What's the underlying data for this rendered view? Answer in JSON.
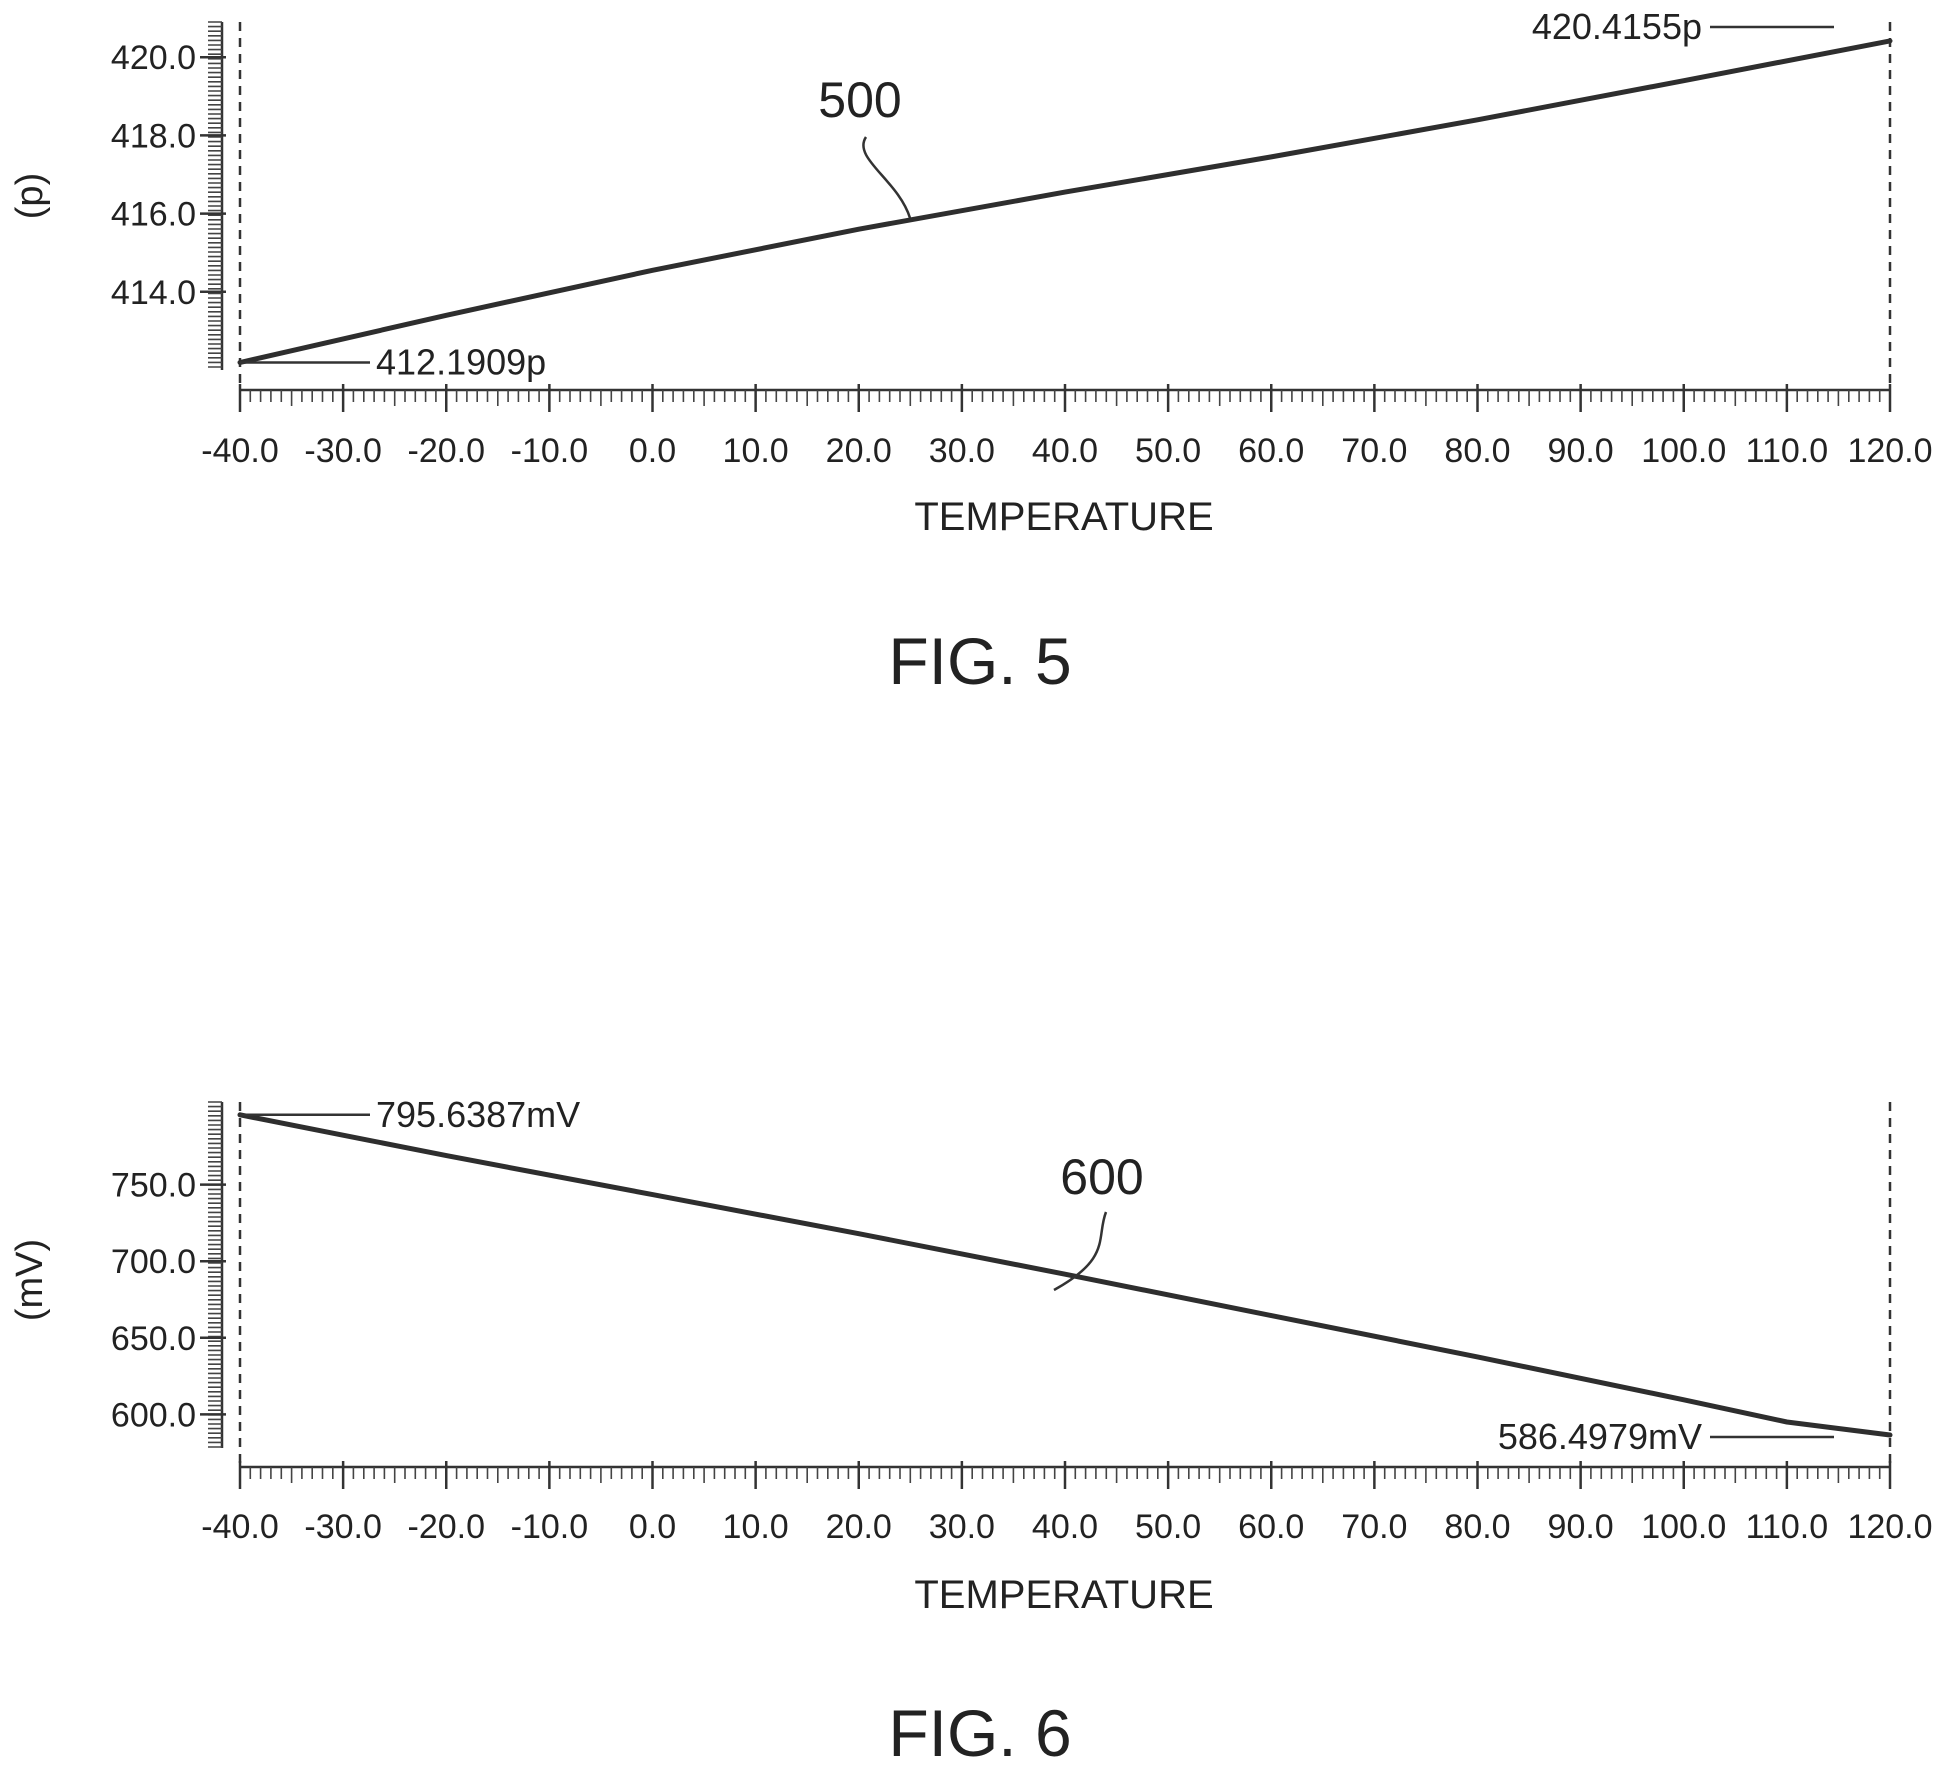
{
  "charts": [
    {
      "figure_label": "FIG. 5",
      "reference_numeral": "500",
      "chart_data": {
        "type": "line",
        "xlabel": "TEMPERATURE",
        "ylabel": "(p)",
        "x_ticks": [
          "-40.0",
          "-30.0",
          "-20.0",
          "-10.0",
          "0.0",
          "10.0",
          "20.0",
          "30.0",
          "40.0",
          "50.0",
          "60.0",
          "70.0",
          "80.0",
          "90.0",
          "100.0",
          "110.0",
          "120.0"
        ],
        "y_ticks": [
          "414.0",
          "416.0",
          "418.0",
          "420.0"
        ],
        "xlim": [
          -40,
          120
        ],
        "ylim": [
          412.0,
          420.9
        ],
        "grid": false,
        "series": [
          {
            "x": [
              -40,
              -20,
              0,
              20,
              40,
              60,
              80,
              100,
              120
            ],
            "y": [
              412.1909,
              413.4,
              414.55,
              415.6,
              416.55,
              417.45,
              418.4,
              419.4,
              420.4155
            ]
          }
        ],
        "annotations": [
          {
            "text": "412.1909p",
            "x": -40,
            "y": 412.1909
          },
          {
            "text": "420.4155p",
            "x": 120,
            "y": 420.4155
          }
        ]
      }
    },
    {
      "figure_label": "FIG. 6",
      "reference_numeral": "600",
      "chart_data": {
        "type": "line",
        "xlabel": "TEMPERATURE",
        "ylabel": "(mV)",
        "x_ticks": [
          "-40.0",
          "-30.0",
          "-20.0",
          "-10.0",
          "0.0",
          "10.0",
          "20.0",
          "30.0",
          "40.0",
          "50.0",
          "60.0",
          "70.0",
          "80.0",
          "90.0",
          "100.0",
          "110.0",
          "120.0"
        ],
        "y_ticks": [
          "600.0",
          "650.0",
          "700.0",
          "750.0"
        ],
        "xlim": [
          -40,
          120
        ],
        "ylim": [
          578,
          804
        ],
        "grid": false,
        "series": [
          {
            "x": [
              -40,
              -20,
              0,
              20,
              40,
              60,
              80,
              100,
              110,
              120
            ],
            "y": [
              795.6387,
              769.0,
              743.5,
              718.0,
              691.5,
              664.5,
              637.5,
              609.5,
              595.0,
              586.4979
            ]
          }
        ],
        "annotations": [
          {
            "text": "795.6387mV",
            "x": -40,
            "y": 795.6387
          },
          {
            "text": "586.4979mV",
            "x": 120,
            "y": 586.4979
          }
        ]
      }
    }
  ]
}
